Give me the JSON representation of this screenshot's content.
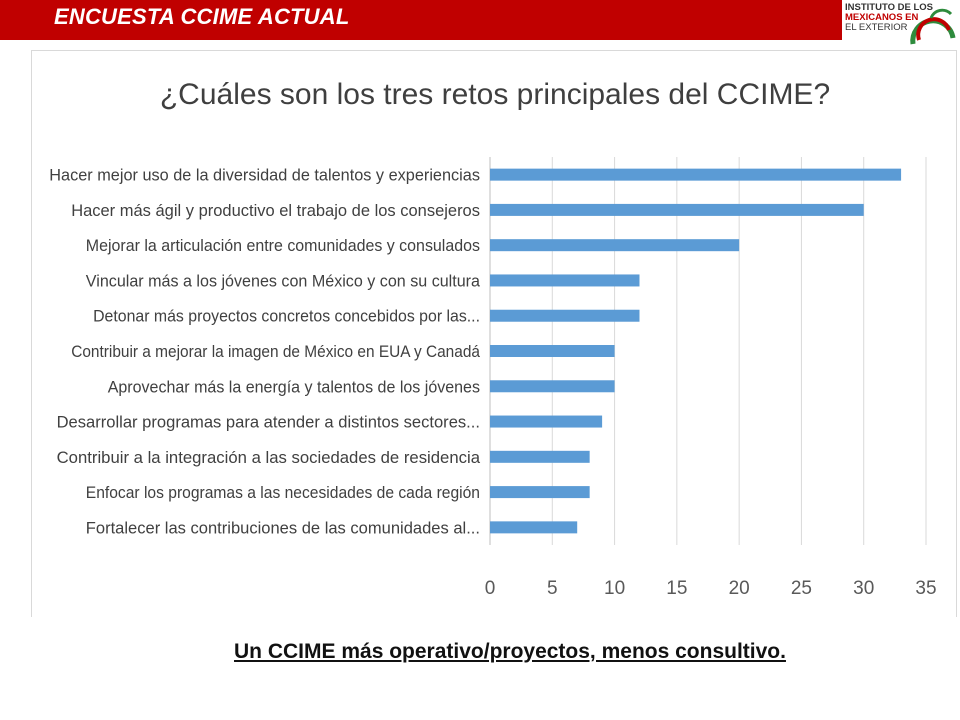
{
  "header": {
    "title": "ENCUESTA CCIME ACTUAL",
    "bar_color": "#c00000"
  },
  "logo": {
    "line1": "INSTITUTO DE LOS",
    "line2": "MEXICANOS EN",
    "line3": "EL EXTERIOR"
  },
  "chart_data": {
    "type": "bar",
    "orientation": "horizontal",
    "title": "¿Cuáles son los tres retos principales del CCIME?",
    "categories": [
      "Hacer mejor uso de la diversidad de talentos y experiencias",
      "Hacer más ágil y productivo el trabajo de los consejeros",
      "Mejorar la articulación entre comunidades y consulados",
      "Vincular más a los jóvenes con México y con su cultura",
      "Detonar más proyectos concretos concebidos por las...",
      "Contribuir a mejorar la imagen de México en EUA y Canadá",
      "Aprovechar más la energía y talentos de los jóvenes",
      "Desarrollar programas para atender a distintos sectores...",
      "Contribuir a la integración a las sociedades de residencia",
      "Enfocar los programas a las necesidades de cada región",
      "Fortalecer las contribuciones de las comunidades al..."
    ],
    "values": [
      33,
      30,
      20,
      12,
      12,
      10,
      10,
      9,
      8,
      8,
      7
    ],
    "xlim": [
      0,
      35
    ],
    "xticks": [
      "0",
      "5",
      "10",
      "15",
      "20",
      "25",
      "30",
      "35"
    ],
    "grid": true,
    "bar_color": "#5b9bd5",
    "grid_color": "#d9d9d9"
  },
  "footer": {
    "note": "Un CCIME más operativo/proyectos, menos consultivo."
  }
}
